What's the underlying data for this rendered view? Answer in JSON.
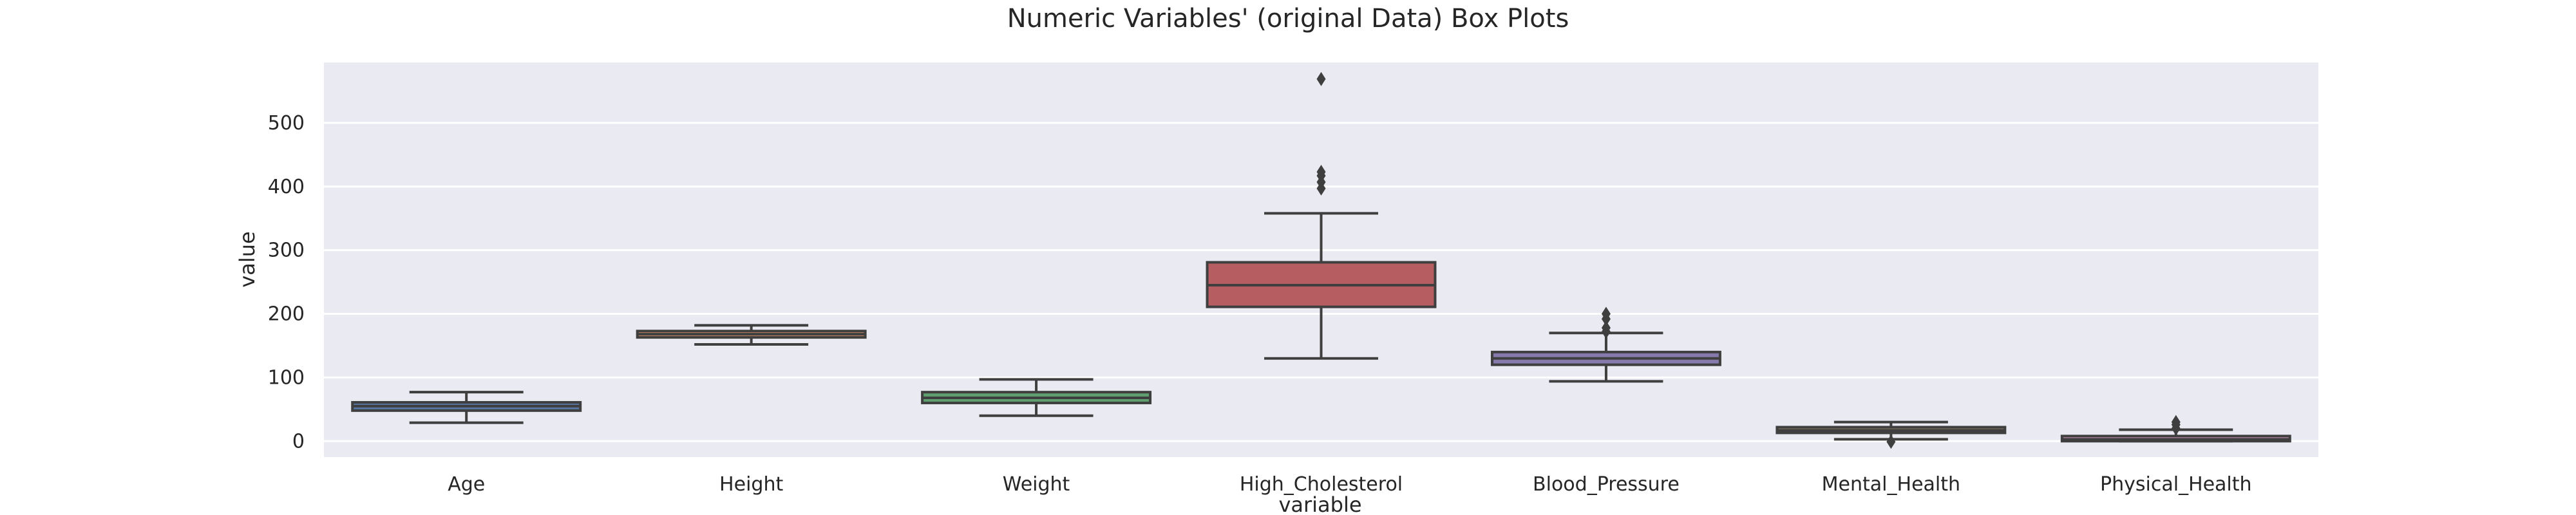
{
  "chart_data": {
    "type": "box",
    "title": "Numeric Variables' (original Data) Box Plots",
    "xlabel": "variable",
    "ylabel": "value",
    "ylim": [
      -25,
      595
    ],
    "yticks": [
      0,
      100,
      200,
      300,
      400,
      500
    ],
    "grid": true,
    "background": "#eaeaf2",
    "gridColor": "#ffffff",
    "lineColor": "#3f3f3f",
    "categories": [
      "Age",
      "Height",
      "Weight",
      "High_Cholesterol",
      "Blood_Pressure",
      "Mental_Health",
      "Physical_Health"
    ],
    "boxes": [
      {
        "category": "Age",
        "color": "#5975a4",
        "whislo": 29,
        "q1": 48,
        "med": 55,
        "q3": 61,
        "whishi": 77,
        "fliers": []
      },
      {
        "category": "Height",
        "color": "#cc8963",
        "whislo": 152,
        "q1": 163,
        "med": 168,
        "q3": 173,
        "whishi": 182,
        "fliers": []
      },
      {
        "category": "Weight",
        "color": "#5f9e6e",
        "whislo": 40,
        "q1": 60,
        "med": 68,
        "q3": 77,
        "whishi": 97,
        "fliers": []
      },
      {
        "category": "High_Cholesterol",
        "color": "#b55d60",
        "whislo": 130,
        "q1": 211,
        "med": 245,
        "q3": 281,
        "whishi": 358,
        "fliers": [
          397,
          407,
          417,
          423,
          569
        ]
      },
      {
        "category": "Blood_Pressure",
        "color": "#857aab",
        "whislo": 94,
        "q1": 120,
        "med": 130,
        "q3": 140,
        "whishi": 170,
        "fliers": [
          172,
          178,
          192,
          200
        ]
      },
      {
        "category": "Mental_Health",
        "color": "#8d7866",
        "whislo": 3,
        "q1": 13,
        "med": 17,
        "q3": 22,
        "whishi": 30,
        "fliers": [
          -1
        ]
      },
      {
        "category": "Physical_Health",
        "color": "#d095bf",
        "whislo": 0,
        "q1": 0,
        "med": 3,
        "q3": 8,
        "whishi": 18,
        "fliers": [
          20,
          26,
          30
        ]
      }
    ]
  }
}
